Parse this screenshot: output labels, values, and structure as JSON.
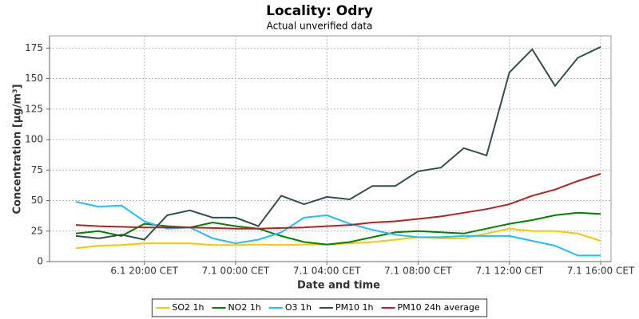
{
  "chart_data": {
    "type": "line",
    "title": "Locality: Odry",
    "subtitle": "Actual unverified data",
    "y_label": "Concentration [µg/m³]",
    "x_label": "Date and time",
    "categories": [
      null,
      null,
      null,
      "6.1 20:00 CET",
      null,
      null,
      null,
      "7.1 00:00 CET",
      null,
      null,
      null,
      "7.1 04:00 CET",
      null,
      null,
      null,
      "7.1 08:00 CET",
      null,
      null,
      null,
      "7.1 12:00 CET",
      null,
      null,
      null,
      "7.1 16:00 CET"
    ],
    "ylim": [
      0,
      185
    ],
    "yticks": [
      0,
      25,
      50,
      75,
      100,
      125,
      150,
      175
    ],
    "grid": true,
    "legend": "bottom",
    "series": [
      {
        "name": "SO2 1h",
        "color": "#f5c800",
        "values": [
          11,
          13,
          13.5,
          15,
          15,
          15,
          13.5,
          13.5,
          14,
          13.5,
          14,
          14,
          15,
          16,
          18,
          20,
          19,
          19,
          23,
          27,
          25,
          25,
          23,
          17
        ]
      },
      {
        "name": "NO2 1h",
        "color": "#008000",
        "values": [
          23,
          25,
          21,
          31,
          29,
          28,
          32,
          29,
          27,
          21,
          16,
          14,
          16,
          20,
          24,
          25,
          24,
          23,
          27,
          31,
          34,
          38,
          40,
          39
        ]
      },
      {
        "name": "O3 1h",
        "color": "#1ebeff",
        "values": [
          49,
          45,
          46,
          33,
          27,
          28,
          19,
          15,
          18,
          24,
          36,
          38,
          31,
          26,
          22,
          20,
          20,
          21,
          21,
          21,
          17,
          13,
          5,
          5
        ]
      },
      {
        "name": "PM10 1h",
        "color": "#2f4f4f",
        "values": [
          21,
          19,
          22,
          18,
          38,
          42,
          36,
          36,
          29,
          54,
          47,
          53,
          51,
          62,
          62,
          74,
          77,
          93,
          87,
          155,
          174,
          144,
          167,
          176
        ]
      },
      {
        "name": "PM10 24h average",
        "color": "#b22222",
        "values": [
          30,
          29,
          28.5,
          28,
          28,
          28,
          27.5,
          27,
          27,
          27.5,
          28,
          29,
          30,
          32,
          33,
          35,
          37,
          40,
          43,
          47,
          54,
          59,
          66,
          72
        ]
      }
    ]
  }
}
